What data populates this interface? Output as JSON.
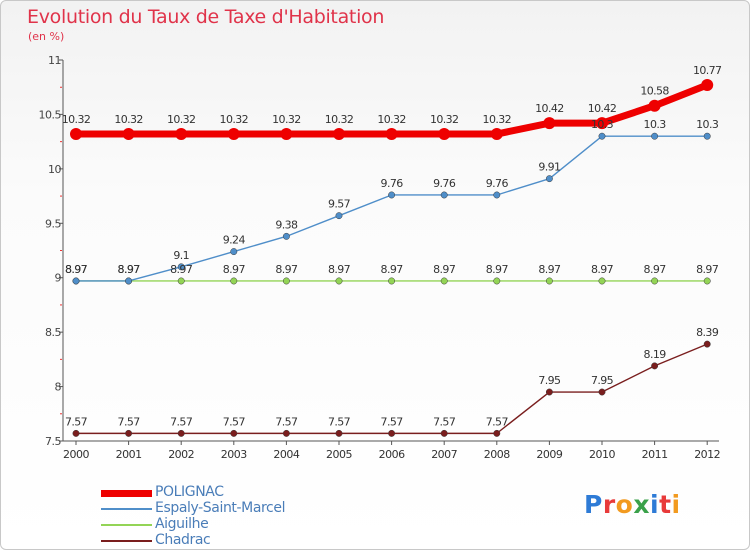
{
  "title": "Evolution du Taux de Taxe d'Habitation",
  "subtitle": "(en %)",
  "logo": {
    "text": "Proxiti",
    "letters": [
      {
        "ch": "P",
        "color": "#2e7bd6"
      },
      {
        "ch": "r",
        "color": "#e83a3a"
      },
      {
        "ch": "o",
        "color": "#f29a1f"
      },
      {
        "ch": "x",
        "color": "#3aa14a"
      },
      {
        "ch": "i",
        "color": "#2e7bd6"
      },
      {
        "ch": "t",
        "color": "#e83a3a"
      },
      {
        "ch": "i",
        "color": "#f29a1f"
      }
    ]
  },
  "chart_data": {
    "type": "line",
    "title": "Evolution du Taux de Taxe d'Habitation",
    "ylabel": "(en %)",
    "xlabel": "",
    "x": [
      "2000",
      "2001",
      "2002",
      "2003",
      "2004",
      "2005",
      "2006",
      "2007",
      "2008",
      "2009",
      "2010",
      "2011",
      "2012"
    ],
    "ylim": [
      7.5,
      11
    ],
    "yticks": [
      "7.5",
      "8",
      "8.5",
      "9",
      "9.5",
      "10",
      "10.5",
      "11"
    ],
    "grid": false,
    "legend_position": "bottom-left",
    "series": [
      {
        "name": "POLIGNAC",
        "color": "#ee0000",
        "values": [
          10.32,
          10.32,
          10.32,
          10.32,
          10.32,
          10.32,
          10.32,
          10.32,
          10.32,
          10.42,
          10.42,
          10.58,
          10.77
        ]
      },
      {
        "name": "Espaly-Saint-Marcel",
        "color": "#4f8ec9",
        "values": [
          8.97,
          8.97,
          9.1,
          9.24,
          9.38,
          9.57,
          9.76,
          9.76,
          9.76,
          9.91,
          10.3,
          10.3,
          10.3
        ]
      },
      {
        "name": "Aiguilhe",
        "color": "#93d456",
        "values": [
          8.97,
          8.97,
          8.97,
          8.97,
          8.97,
          8.97,
          8.97,
          8.97,
          8.97,
          8.97,
          8.97,
          8.97,
          8.97
        ]
      },
      {
        "name": "Chadrac",
        "color": "#7a1e1e",
        "values": [
          7.57,
          7.57,
          7.57,
          7.57,
          7.57,
          7.57,
          7.57,
          7.57,
          7.57,
          7.95,
          7.95,
          8.19,
          8.39
        ]
      }
    ],
    "data_labels": {
      "POLIGNAC": [
        "10.32",
        "10.32",
        "10.32",
        "10.32",
        "10.32",
        "10.32",
        "10.32",
        "10.32",
        "10.32",
        "10.42",
        "10.42",
        "10.58",
        "10.77"
      ],
      "Espaly-Saint-Marcel": [
        "8.97",
        "8.97",
        "9.1",
        "9.24",
        "9.38",
        "9.57",
        "9.76",
        "9.76",
        "9.76",
        "9.91",
        "10.3",
        "10.3",
        "10.3"
      ],
      "Aiguilhe": [
        "8.97",
        "8.97",
        "8.97",
        "8.97",
        "8.97",
        "8.97",
        "8.97",
        "8.97",
        "8.97",
        "8.97",
        "8.97",
        "8.97",
        "8.97"
      ],
      "Chadrac": [
        "7.57",
        "7.57",
        "7.57",
        "7.57",
        "7.57",
        "7.57",
        "7.57",
        "7.57",
        "7.57",
        "7.95",
        "7.95",
        "8.19",
        "8.39"
      ]
    }
  }
}
